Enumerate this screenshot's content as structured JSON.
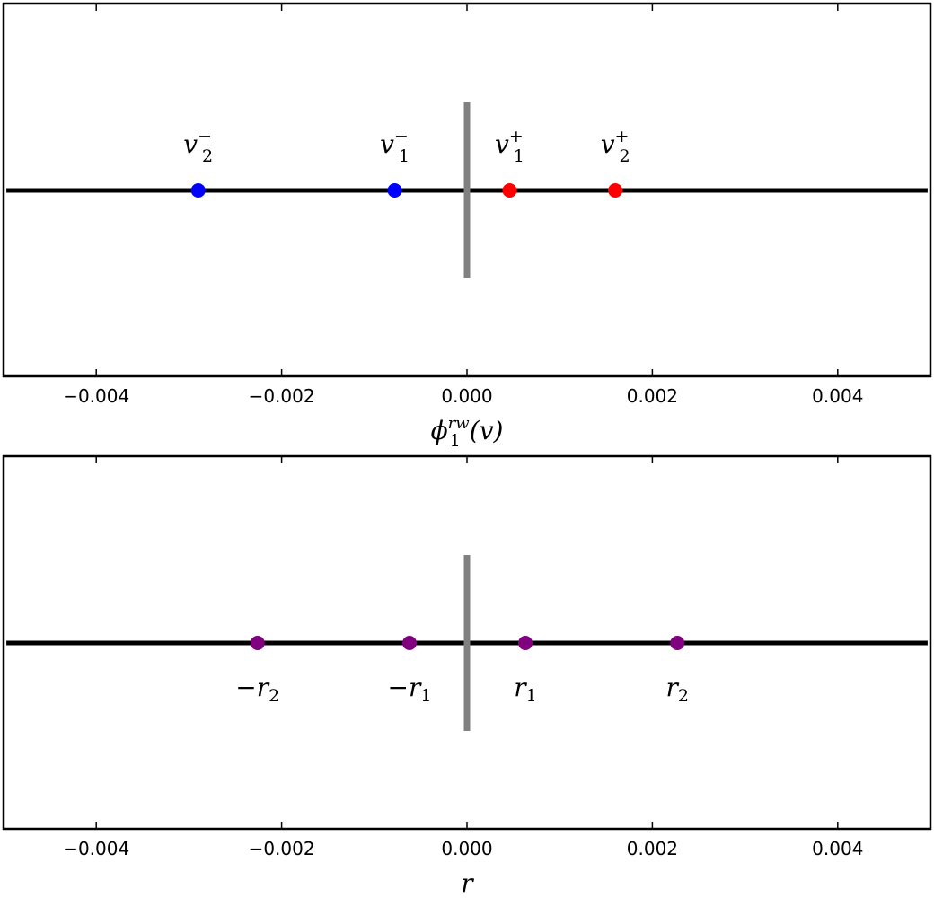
{
  "chart_data": [
    {
      "type": "scatter",
      "xlim": [
        -0.005,
        0.005
      ],
      "xticks": [
        -0.004,
        -0.002,
        0.0,
        0.002,
        0.004
      ],
      "xtick_labels": [
        "−0.004",
        "−0.002",
        "0.000",
        "0.002",
        "0.004"
      ],
      "xlabel": {
        "base": "ϕ",
        "sub": "1",
        "sup": "rw",
        "arg": "(v)"
      },
      "baseline_y": 0,
      "zero_marker": {
        "x": 0.0,
        "color": "#808080"
      },
      "label_position": "above",
      "points": [
        {
          "x": -0.0029,
          "y": 0,
          "color": "#0000ff",
          "label": {
            "base": "v",
            "sub": "2",
            "sup": "−"
          }
        },
        {
          "x": -0.00078,
          "y": 0,
          "color": "#0000ff",
          "label": {
            "base": "v",
            "sub": "1",
            "sup": "−"
          }
        },
        {
          "x": 0.00046,
          "y": 0,
          "color": "#ff0000",
          "label": {
            "base": "v",
            "sub": "1",
            "sup": "+"
          }
        },
        {
          "x": 0.0016,
          "y": 0,
          "color": "#ff0000",
          "label": {
            "base": "v",
            "sub": "2",
            "sup": "+"
          }
        }
      ]
    },
    {
      "type": "scatter",
      "xlim": [
        -0.005,
        0.005
      ],
      "xticks": [
        -0.004,
        -0.002,
        0.0,
        0.002,
        0.004
      ],
      "xtick_labels": [
        "−0.004",
        "−0.002",
        "0.000",
        "0.002",
        "0.004"
      ],
      "xlabel": {
        "base": "r"
      },
      "baseline_y": 0,
      "zero_marker": {
        "x": 0.0,
        "color": "#808080"
      },
      "label_position": "below",
      "points": [
        {
          "x": -0.00226,
          "y": 0,
          "color": "#800080",
          "label": {
            "prefix": "−",
            "base": "r",
            "sub": "2"
          }
        },
        {
          "x": -0.00062,
          "y": 0,
          "color": "#800080",
          "label": {
            "prefix": "−",
            "base": "r",
            "sub": "1"
          }
        },
        {
          "x": 0.00063,
          "y": 0,
          "color": "#800080",
          "label": {
            "base": "r",
            "sub": "1"
          }
        },
        {
          "x": 0.00227,
          "y": 0,
          "color": "#800080",
          "label": {
            "base": "r",
            "sub": "2"
          }
        }
      ]
    }
  ]
}
